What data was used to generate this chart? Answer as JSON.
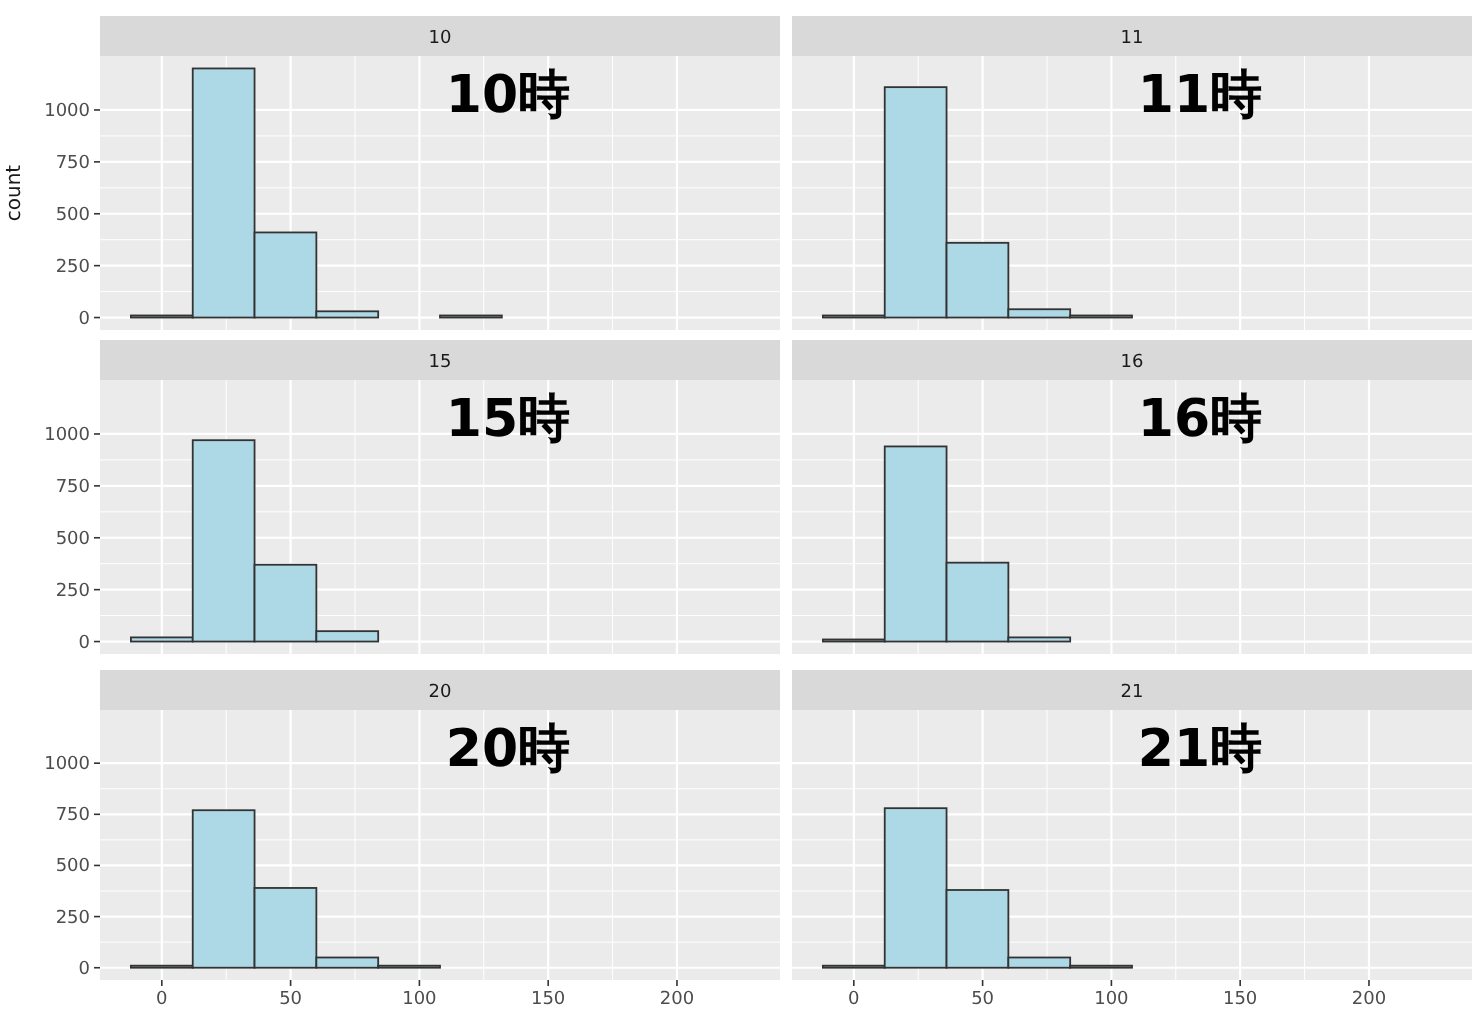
{
  "chart_data": [
    {
      "type": "histogram",
      "title": "10",
      "ylabel": "count",
      "annotations": [
        "10時"
      ],
      "bins": [
        -12,
        12,
        36,
        60,
        84,
        108,
        132,
        156,
        180,
        204,
        228
      ],
      "values": [
        10,
        1200,
        410,
        30,
        0,
        10,
        0,
        0,
        0,
        0
      ],
      "color": "#add8e6",
      "xlim": [
        -24,
        240
      ],
      "xticks": [
        0,
        50,
        100,
        150,
        200
      ],
      "ylim": [
        -60,
        1260
      ],
      "yticks": [
        0,
        250,
        500,
        750,
        1000
      ],
      "grid": true,
      "tick_labels": "y"
    },
    {
      "type": "histogram",
      "title": "11",
      "annotations": [
        "11時"
      ],
      "bins": [
        -12,
        12,
        36,
        60,
        84,
        108,
        132,
        156,
        180,
        204,
        228
      ],
      "values": [
        10,
        1110,
        360,
        40,
        10,
        0,
        0,
        0,
        0,
        0
      ],
      "color": "#add8e6",
      "xlim": [
        -24,
        240
      ],
      "xticks": [
        0,
        50,
        100,
        150,
        200
      ],
      "ylim": [
        -60,
        1260
      ],
      "yticks": [
        0,
        250,
        500,
        750,
        1000
      ],
      "grid": true,
      "tick_labels": false
    },
    {
      "type": "histogram",
      "title": "15",
      "annotations": [
        "15時"
      ],
      "bins": [
        -12,
        12,
        36,
        60,
        84,
        108,
        132,
        156,
        180,
        204,
        228
      ],
      "values": [
        20,
        970,
        370,
        50,
        0,
        0,
        0,
        0,
        0,
        0
      ],
      "color": "#add8e6",
      "xlim": [
        -24,
        240
      ],
      "xticks": [
        0,
        50,
        100,
        150,
        200
      ],
      "ylim": [
        -60,
        1260
      ],
      "yticks": [
        0,
        250,
        500,
        750,
        1000
      ],
      "grid": true,
      "tick_labels": "y"
    },
    {
      "type": "histogram",
      "title": "16",
      "annotations": [
        "16時"
      ],
      "bins": [
        -12,
        12,
        36,
        60,
        84,
        108,
        132,
        156,
        180,
        204,
        228
      ],
      "values": [
        10,
        940,
        380,
        20,
        0,
        0,
        0,
        0,
        0,
        0
      ],
      "color": "#add8e6",
      "xlim": [
        -24,
        240
      ],
      "xticks": [
        0,
        50,
        100,
        150,
        200
      ],
      "ylim": [
        -60,
        1260
      ],
      "yticks": [
        0,
        250,
        500,
        750,
        1000
      ],
      "grid": true,
      "tick_labels": false
    },
    {
      "type": "histogram",
      "title": "20",
      "annotations": [
        "20時"
      ],
      "bins": [
        -12,
        12,
        36,
        60,
        84,
        108,
        132,
        156,
        180,
        204,
        228
      ],
      "values": [
        10,
        770,
        390,
        50,
        10,
        0,
        0,
        0,
        0,
        0
      ],
      "color": "#add8e6",
      "xlim": [
        -24,
        240
      ],
      "xticks": [
        0,
        50,
        100,
        150,
        200
      ],
      "ylim": [
        -60,
        1260
      ],
      "yticks": [
        0,
        250,
        500,
        750,
        1000
      ],
      "grid": true
    },
    {
      "type": "histogram",
      "title": "21",
      "annotations": [
        "21時"
      ],
      "bins": [
        -12,
        12,
        36,
        60,
        84,
        108,
        132,
        156,
        180,
        204,
        228
      ],
      "values": [
        10,
        780,
        380,
        50,
        10,
        0,
        0,
        0,
        0,
        0
      ],
      "color": "#add8e6",
      "xlim": [
        -24,
        240
      ],
      "xticks": [
        0,
        50,
        100,
        150,
        200
      ],
      "ylim": [
        -60,
        1260
      ],
      "yticks": [
        0,
        250,
        500,
        750,
        1000
      ],
      "grid": true,
      "tick_labels": "x"
    }
  ]
}
